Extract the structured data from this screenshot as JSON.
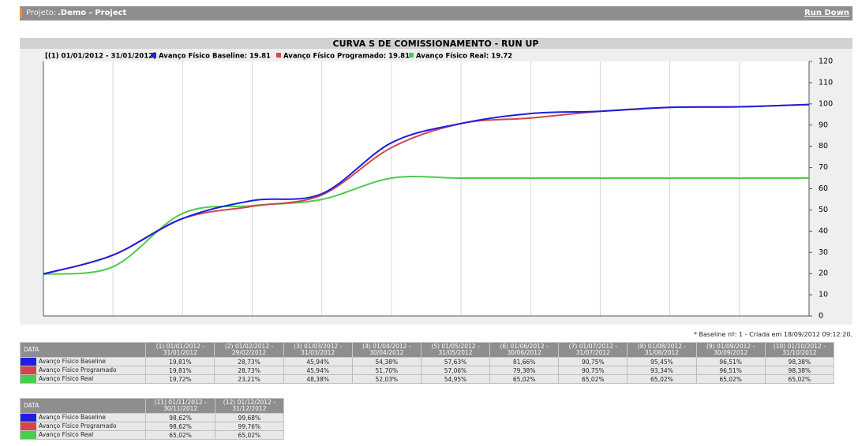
{
  "header": {
    "project_label": "Projeto:",
    "project": ".Demo - Project",
    "link": "Run Down"
  },
  "chart_data": {
    "type": "line",
    "title": "CURVA S DE COMISSIONAMENTO - RUN UP",
    "period": "[(1) 01/01/2012 - 31/01/2012]",
    "categories": [
      "(1) 01/01/2012 - 31/01/2012",
      "(2) 01/02/2012 - 29/02/2012",
      "(3) 01/03/2012 - 31/03/2012",
      "(4) 01/04/2012 - 30/04/2012",
      "(5) 01/05/2012 - 31/05/2012",
      "(6) 01/06/2012 - 30/06/2012",
      "(7) 01/07/2012 - 31/07/2012",
      "(8) 01/08/2012 - 31/08/2012",
      "(9) 01/09/2012 - 30/09/2012",
      "(10) 01/10/2012 - 31/10/2012",
      "(11) 01/11/2012 - 30/11/2012",
      "(12) 01/12/2012 - 31/12/2012"
    ],
    "series": [
      {
        "name": "Avanço Físico Baseline",
        "legend_label": "Avanço Físico Baseline: 19.81",
        "color": "#1f1fe0",
        "values": [
          19.81,
          28.73,
          45.94,
          54.38,
          57.63,
          81.66,
          90.75,
          95.45,
          96.51,
          98.38,
          98.62,
          99.68
        ],
        "value_labels": [
          "19,81%",
          "28,73%",
          "45,94%",
          "54,38%",
          "57,63%",
          "81,66%",
          "90,75%",
          "95,45%",
          "96,51%",
          "98,38%",
          "98,62%",
          "99,68%"
        ]
      },
      {
        "name": "Avanço Físico Programado",
        "legend_label": "Avanço Físico Programado: 19.81",
        "color": "#d0484a",
        "values": [
          19.81,
          28.73,
          45.94,
          51.7,
          57.06,
          79.38,
          90.75,
          93.34,
          96.51,
          98.38,
          98.62,
          99.76
        ],
        "value_labels": [
          "19,81%",
          "28,73%",
          "45,94%",
          "51,70%",
          "57,06%",
          "79,38%",
          "90,75%",
          "93,34%",
          "96,51%",
          "98,38%",
          "98,62%",
          "99,76%"
        ]
      },
      {
        "name": "Avanço Físico Real",
        "legend_label": "Avanço Físico Real: 19.72",
        "color": "#4ccc4c",
        "values": [
          19.72,
          23.21,
          48.38,
          52.03,
          54.95,
          65.02,
          65.02,
          65.02,
          65.02,
          65.02,
          65.02,
          65.02
        ],
        "value_labels": [
          "19,72%",
          "23,21%",
          "48,38%",
          "52,03%",
          "54,95%",
          "65,02%",
          "65,02%",
          "65,02%",
          "65,02%",
          "65,02%",
          "65,02%",
          "65,02%"
        ]
      }
    ],
    "ylim": [
      0,
      120
    ],
    "yticks": [
      0,
      10,
      20,
      30,
      40,
      50,
      60,
      70,
      80,
      90,
      100,
      110,
      120
    ],
    "grid": true
  },
  "footnote": "* Baseline nº: 1 - Criada em 18/09/2012 09:12:20.",
  "table": {
    "first_header": "DATA"
  }
}
